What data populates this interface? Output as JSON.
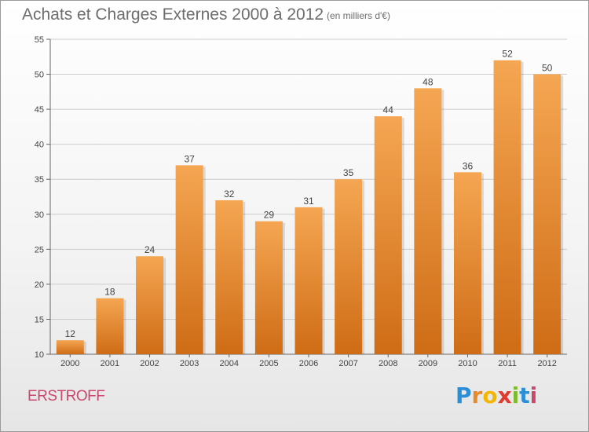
{
  "title": "Achats et Charges Externes 2000 à 2012",
  "unit": "(en milliers d'€)",
  "commune": "ERSTROFF",
  "logo": {
    "letters": [
      "P",
      "r",
      "o",
      "x",
      "i",
      "t",
      "i"
    ],
    "colors": [
      "#2a8fd6",
      "#e8892a",
      "#f2b705",
      "#e23a2e",
      "#7dbb2c",
      "#2a8fd6",
      "#c9486e"
    ]
  },
  "colors": {
    "bar_top": "#f5a652",
    "bar_bottom": "#cf6c16",
    "grid": "#cccccc"
  },
  "chart_data": {
    "type": "bar",
    "categories": [
      "2000",
      "2001",
      "2002",
      "2003",
      "2004",
      "2005",
      "2006",
      "2007",
      "2008",
      "2009",
      "2010",
      "2011",
      "2012"
    ],
    "values": [
      12,
      18,
      24,
      37,
      32,
      29,
      31,
      35,
      44,
      48,
      36,
      52,
      50
    ],
    "y_ticks": [
      10,
      15,
      20,
      25,
      30,
      35,
      40,
      45,
      50,
      55
    ],
    "ylim": [
      10,
      55
    ],
    "grid": true,
    "value_labels": true
  }
}
